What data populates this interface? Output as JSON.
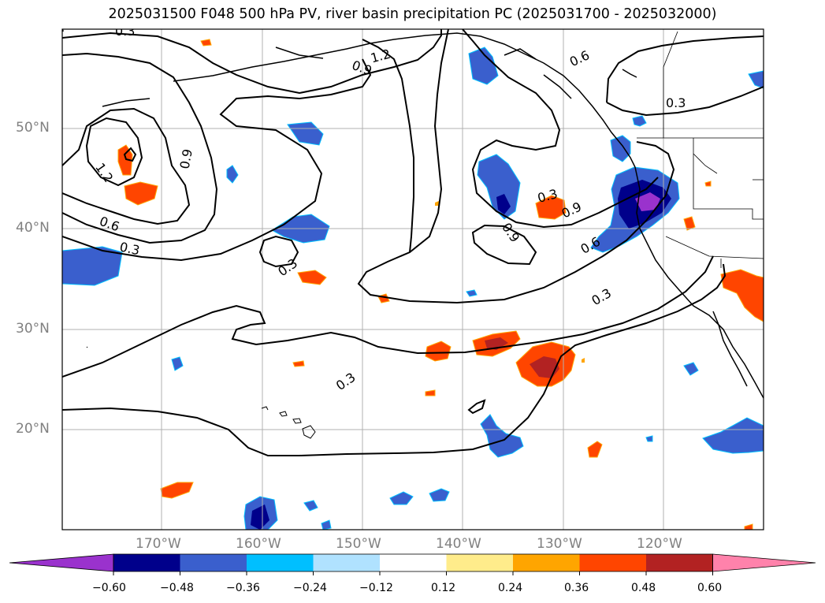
{
  "title": "2025031500 F048 500 hPa PV, river basin precipitation PC (2025031700 - 2025032000)",
  "map": {
    "lat_labels": [
      "50°N",
      "40°N",
      "30°N",
      "20°N"
    ],
    "lon_labels": [
      "170°W",
      "160°W",
      "150°W",
      "140°W",
      "130°W",
      "120°W"
    ],
    "contour_labels": [
      "0.3",
      "1.2",
      "0.9",
      "0.6",
      "0.3",
      "0.9",
      "1.2",
      "0.6",
      "0.3",
      "0.3",
      "0.3",
      "0.9",
      "0.3",
      "0.9",
      "0.6",
      "0.3"
    ]
  },
  "colorbar": {
    "ticks": [
      "−0.60",
      "−0.48",
      "−0.36",
      "−0.24",
      "−0.12",
      "0.12",
      "0.24",
      "0.36",
      "0.48",
      "0.60"
    ],
    "colors": [
      "#9a32cd",
      "#00008b",
      "#3a5fcd",
      "#00bfff",
      "#b0e2ff",
      "#ffffff",
      "#ffec8b",
      "#ffa500",
      "#ff4500",
      "#b22222",
      "#ff82ab"
    ]
  }
}
